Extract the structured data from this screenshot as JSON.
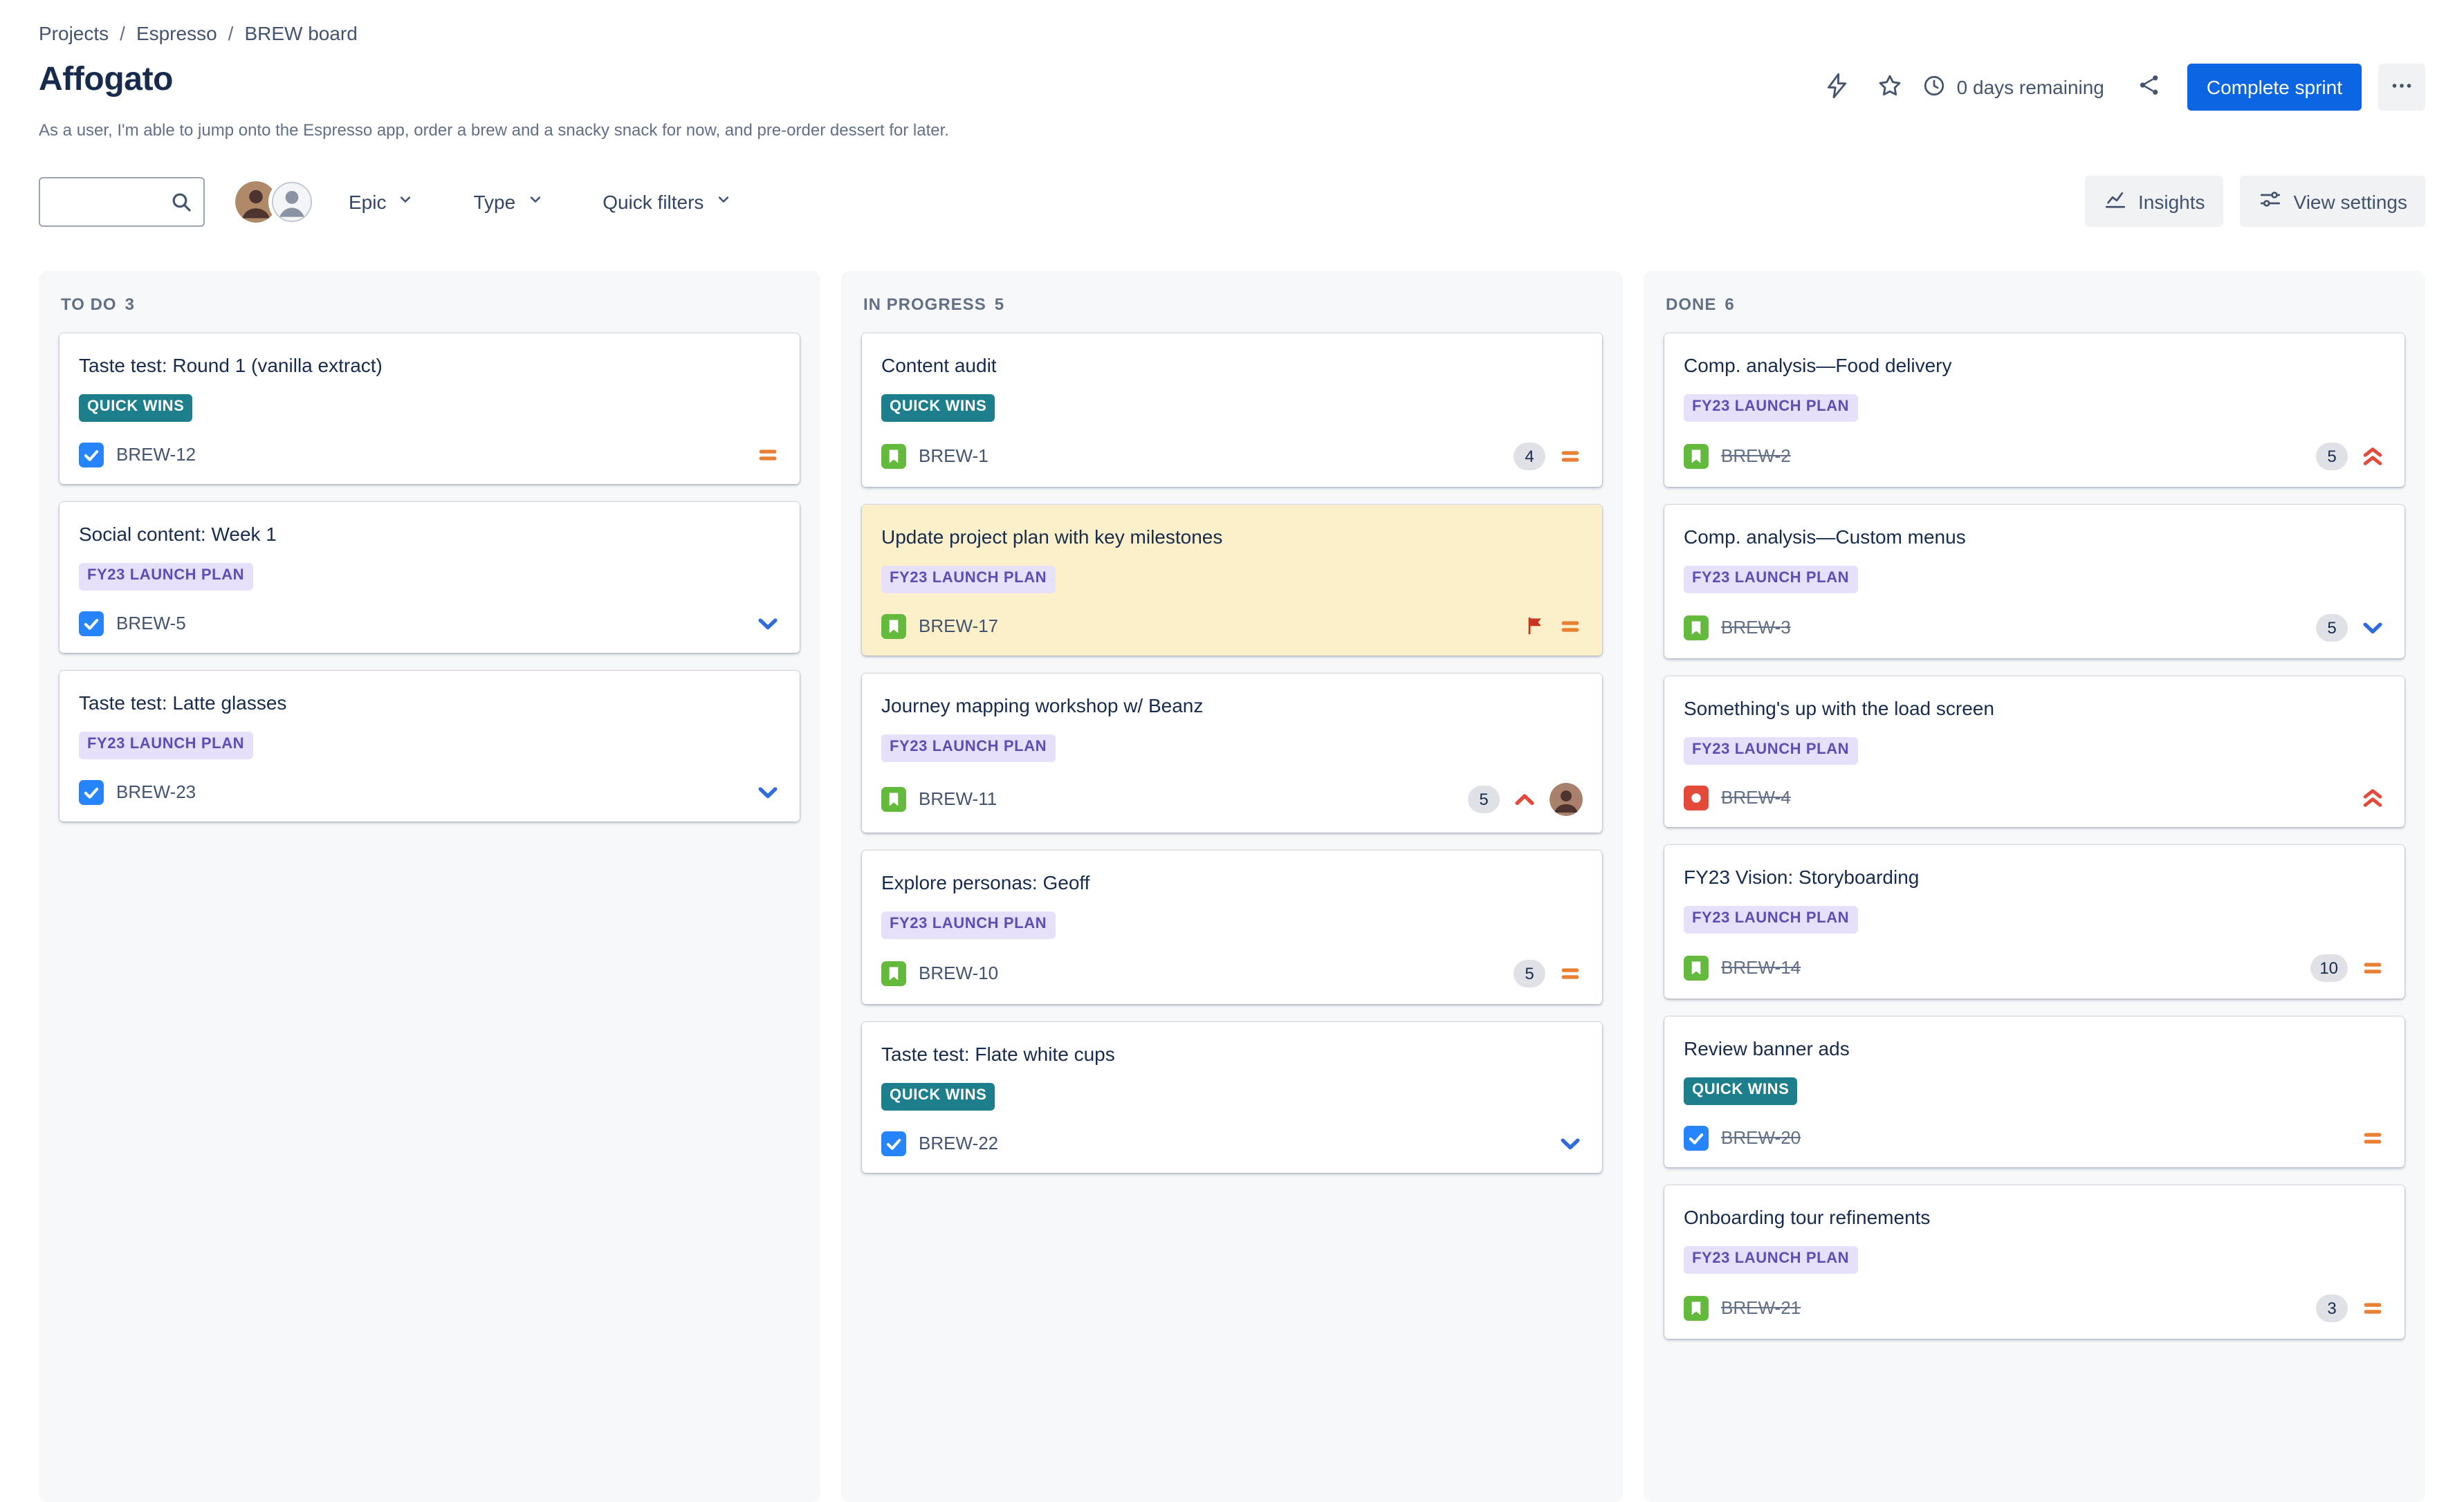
{
  "breadcrumb": {
    "separator": "/",
    "items": [
      "Projects",
      "Espresso",
      "BREW board"
    ]
  },
  "header": {
    "title": "Affogato",
    "description": "As a user, I'm able to jump onto the Espresso app, order a brew and a snacky snack for now, and pre-order dessert for later.",
    "days_remaining": "0 days remaining",
    "complete_sprint_label": "Complete sprint"
  },
  "toolbar": {
    "search_placeholder": "",
    "epic_label": "Epic",
    "type_label": "Type",
    "quick_filters_label": "Quick filters",
    "insights_label": "Insights",
    "view_settings_label": "View settings"
  },
  "board": {
    "columns": [
      {
        "id": "todo",
        "title": "TO DO",
        "count": 3,
        "cards": [
          {
            "title": "Taste test: Round 1 (vanilla extract)",
            "epic": {
              "label": "QUICK WINS",
              "variant": "teal"
            },
            "key": "BREW-12",
            "type": "task",
            "done": false,
            "estimate": null,
            "priority": "medium",
            "flagged": false,
            "assignee": false
          },
          {
            "title": "Social content: Week 1",
            "epic": {
              "label": "FY23 LAUNCH PLAN",
              "variant": "purple"
            },
            "key": "BREW-5",
            "type": "task",
            "done": false,
            "estimate": null,
            "priority": "low",
            "flagged": false,
            "assignee": false
          },
          {
            "title": "Taste test: Latte glasses",
            "epic": {
              "label": "FY23 LAUNCH PLAN",
              "variant": "purple"
            },
            "key": "BREW-23",
            "type": "task",
            "done": false,
            "estimate": null,
            "priority": "low",
            "flagged": false,
            "assignee": false
          }
        ]
      },
      {
        "id": "in-progress",
        "title": "IN PROGRESS",
        "count": 5,
        "cards": [
          {
            "title": "Content audit",
            "epic": {
              "label": "QUICK WINS",
              "variant": "teal"
            },
            "key": "BREW-1",
            "type": "story",
            "done": false,
            "estimate": 4,
            "priority": "medium",
            "flagged": false,
            "assignee": false
          },
          {
            "title": "Update project plan with key milestones",
            "epic": {
              "label": "FY23 LAUNCH PLAN",
              "variant": "purple"
            },
            "key": "BREW-17",
            "type": "story",
            "done": false,
            "estimate": null,
            "priority": "medium",
            "flagged": true,
            "assignee": false
          },
          {
            "title": "Journey mapping workshop w/ Beanz",
            "epic": {
              "label": "FY23 LAUNCH PLAN",
              "variant": "purple"
            },
            "key": "BREW-11",
            "type": "story",
            "done": false,
            "estimate": 5,
            "priority": "high",
            "flagged": false,
            "assignee": true
          },
          {
            "title": "Explore personas: Geoff",
            "epic": {
              "label": "FY23 LAUNCH PLAN",
              "variant": "purple"
            },
            "key": "BREW-10",
            "type": "story",
            "done": false,
            "estimate": 5,
            "priority": "medium",
            "flagged": false,
            "assignee": false
          },
          {
            "title": "Taste test: Flate white cups",
            "epic": {
              "label": "QUICK WINS",
              "variant": "teal"
            },
            "key": "BREW-22",
            "type": "task",
            "done": false,
            "estimate": null,
            "priority": "low",
            "flagged": false,
            "assignee": false
          }
        ]
      },
      {
        "id": "done",
        "title": "DONE",
        "count": 6,
        "cards": [
          {
            "title": "Comp. analysis—Food delivery",
            "epic": {
              "label": "FY23 LAUNCH PLAN",
              "variant": "purple"
            },
            "key": "BREW-2",
            "type": "story",
            "done": true,
            "estimate": 5,
            "priority": "highest",
            "flagged": false,
            "assignee": false
          },
          {
            "title": "Comp. analysis—Custom menus",
            "epic": {
              "label": "FY23 LAUNCH PLAN",
              "variant": "purple"
            },
            "key": "BREW-3",
            "type": "story",
            "done": true,
            "estimate": 5,
            "priority": "low",
            "flagged": false,
            "assignee": false
          },
          {
            "title": "Something's up with the load screen",
            "epic": {
              "label": "FY23 LAUNCH PLAN",
              "variant": "purple"
            },
            "key": "BREW-4",
            "type": "bug",
            "done": true,
            "estimate": null,
            "priority": "highest",
            "flagged": false,
            "assignee": false
          },
          {
            "title": "FY23 Vision: Storyboarding",
            "epic": {
              "label": "FY23 LAUNCH PLAN",
              "variant": "purple"
            },
            "key": "BREW-14",
            "type": "story",
            "done": true,
            "estimate": 10,
            "priority": "medium",
            "flagged": false,
            "assignee": false
          },
          {
            "title": "Review banner ads",
            "epic": {
              "label": "QUICK WINS",
              "variant": "teal"
            },
            "key": "BREW-20",
            "type": "task",
            "done": true,
            "estimate": null,
            "priority": "medium",
            "flagged": false,
            "assignee": false
          },
          {
            "title": "Onboarding tour refinements",
            "epic": {
              "label": "FY23 LAUNCH PLAN",
              "variant": "purple"
            },
            "key": "BREW-21",
            "type": "story",
            "done": true,
            "estimate": 3,
            "priority": "medium",
            "flagged": false,
            "assignee": false
          }
        ]
      }
    ]
  },
  "colors": {
    "primary_button": "#0C66E4",
    "epic_teal_bg": "#1D7F8C",
    "epic_purple_bg": "#E6E0FA",
    "epic_purple_text": "#5E4DB2",
    "flagged_card_bg": "#FBF0C9",
    "column_bg": "#F7F8F9",
    "priority_medium": "#E97F33",
    "priority_low": "#2E6BE0",
    "priority_high": "#E5493A",
    "priority_highest": "#E5493A",
    "type_task": "#2684FF",
    "type_story": "#63BA3C",
    "type_bug": "#E5493A",
    "flag_red": "#CA3521"
  }
}
